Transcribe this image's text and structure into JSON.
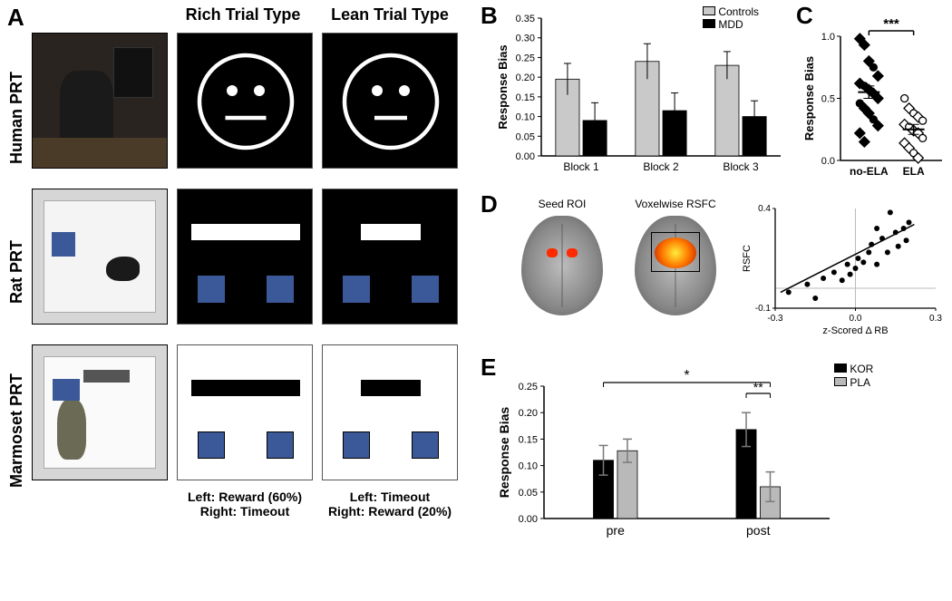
{
  "panelA": {
    "label": "A",
    "column_headers": {
      "rich": "Rich Trial Type",
      "lean": "Lean Trial Type"
    },
    "rows": [
      {
        "species_label": "Human PRT",
        "photo_bg": "#2a2420",
        "stim_bg": "black",
        "stim_type": "face",
        "rich_len": 1.0,
        "lean_len": 0.82
      },
      {
        "species_label": "Rat PRT",
        "photo_bg": "#d6d6d6",
        "stim_bg": "black",
        "stim_type": "bars",
        "bar_color": "#ffffff",
        "sq_color": "#3b5998",
        "rich_len": 1.0,
        "lean_len": 0.55
      },
      {
        "species_label": "Marmoset PRT",
        "photo_bg": "#d6d6d6",
        "stim_bg": "white",
        "stim_type": "bars",
        "bar_color": "#000000",
        "sq_color": "#3b5998",
        "rich_len": 1.0,
        "lean_len": 0.55
      }
    ],
    "captions": {
      "rich_line1": "Left: Reward (60%)",
      "rich_line2": "Right: Timeout",
      "lean_line1": "Left: Timeout",
      "lean_line2": "Right: Reward (20%)"
    }
  },
  "panelB": {
    "label": "B",
    "type": "bar",
    "y_label": "Response Bias",
    "ylim": [
      0,
      0.35
    ],
    "ytick_step": 0.05,
    "categories": [
      "Block 1",
      "Block 2",
      "Block 3"
    ],
    "series": [
      {
        "name": "Controls",
        "color": "#c9c9c9",
        "values": [
          0.195,
          0.24,
          0.23
        ],
        "errors": [
          0.04,
          0.045,
          0.035
        ]
      },
      {
        "name": "MDD",
        "color": "#000000",
        "values": [
          0.09,
          0.115,
          0.1
        ],
        "errors": [
          0.045,
          0.045,
          0.04
        ]
      }
    ],
    "bar_width": 0.32,
    "font_size_axis": 12
  },
  "panelC": {
    "label": "C",
    "type": "scatter-strip",
    "y_label": "Response Bias",
    "ylim": [
      0,
      1.0
    ],
    "ytick_step": 0.5,
    "groups": [
      {
        "name": "no-ELA",
        "x": 0,
        "mean": 0.55,
        "sem": 0.05,
        "points": [
          {
            "y": 0.98,
            "fill": true,
            "shape": "diamond"
          },
          {
            "y": 0.93,
            "fill": true,
            "shape": "diamond"
          },
          {
            "y": 0.8,
            "fill": true,
            "shape": "diamond"
          },
          {
            "y": 0.75,
            "fill": true,
            "shape": "circle"
          },
          {
            "y": 0.68,
            "fill": true,
            "shape": "diamond"
          },
          {
            "y": 0.62,
            "fill": true,
            "shape": "diamond"
          },
          {
            "y": 0.6,
            "fill": true,
            "shape": "circle"
          },
          {
            "y": 0.57,
            "fill": true,
            "shape": "diamond"
          },
          {
            "y": 0.54,
            "fill": true,
            "shape": "diamond"
          },
          {
            "y": 0.5,
            "fill": true,
            "shape": "diamond"
          },
          {
            "y": 0.46,
            "fill": true,
            "shape": "circle"
          },
          {
            "y": 0.42,
            "fill": true,
            "shape": "diamond"
          },
          {
            "y": 0.38,
            "fill": true,
            "shape": "diamond"
          },
          {
            "y": 0.33,
            "fill": true,
            "shape": "circle"
          },
          {
            "y": 0.28,
            "fill": true,
            "shape": "diamond"
          },
          {
            "y": 0.22,
            "fill": true,
            "shape": "diamond"
          },
          {
            "y": 0.15,
            "fill": true,
            "shape": "diamond"
          }
        ]
      },
      {
        "name": "ELA",
        "x": 1,
        "mean": 0.25,
        "sem": 0.04,
        "points": [
          {
            "y": 0.5,
            "fill": false,
            "shape": "circle"
          },
          {
            "y": 0.42,
            "fill": false,
            "shape": "diamond"
          },
          {
            "y": 0.38,
            "fill": false,
            "shape": "circle"
          },
          {
            "y": 0.35,
            "fill": false,
            "shape": "diamond"
          },
          {
            "y": 0.32,
            "fill": false,
            "shape": "circle"
          },
          {
            "y": 0.29,
            "fill": false,
            "shape": "diamond"
          },
          {
            "y": 0.27,
            "fill": false,
            "shape": "circle"
          },
          {
            "y": 0.24,
            "fill": false,
            "shape": "diamond"
          },
          {
            "y": 0.22,
            "fill": false,
            "shape": "diamond"
          },
          {
            "y": 0.18,
            "fill": false,
            "shape": "circle"
          },
          {
            "y": 0.14,
            "fill": false,
            "shape": "diamond"
          },
          {
            "y": 0.1,
            "fill": false,
            "shape": "diamond"
          },
          {
            "y": 0.06,
            "fill": false,
            "shape": "circle"
          },
          {
            "y": 0.02,
            "fill": false,
            "shape": "diamond"
          }
        ]
      }
    ],
    "significance": "***"
  },
  "panelD": {
    "label": "D",
    "brain_labels": {
      "seed": "Seed ROI",
      "voxel": "Voxelwise RSFC"
    },
    "scatter": {
      "x_label": "z-Scored Δ RB",
      "y_label": "RSFC",
      "xlim": [
        -0.3,
        0.3
      ],
      "ylim": [
        -0.1,
        0.4
      ],
      "xticks": [
        -0.3,
        0.0,
        0.3
      ],
      "yticks": [
        -0.1,
        0.4
      ],
      "points": [
        [
          -0.25,
          -0.02
        ],
        [
          -0.18,
          0.02
        ],
        [
          -0.15,
          -0.05
        ],
        [
          -0.12,
          0.05
        ],
        [
          -0.08,
          0.08
        ],
        [
          -0.05,
          0.04
        ],
        [
          -0.03,
          0.12
        ],
        [
          -0.02,
          0.07
        ],
        [
          0.0,
          0.1
        ],
        [
          0.01,
          0.15
        ],
        [
          0.03,
          0.13
        ],
        [
          0.05,
          0.18
        ],
        [
          0.06,
          0.22
        ],
        [
          0.08,
          0.12
        ],
        [
          0.1,
          0.25
        ],
        [
          0.12,
          0.18
        ],
        [
          0.13,
          0.38
        ],
        [
          0.15,
          0.28
        ],
        [
          0.16,
          0.21
        ],
        [
          0.18,
          0.3
        ],
        [
          0.19,
          0.24
        ],
        [
          0.2,
          0.33
        ],
        [
          0.08,
          0.3
        ]
      ],
      "trendline": {
        "x1": -0.28,
        "y1": -0.02,
        "x2": 0.22,
        "y2": 0.32
      }
    }
  },
  "panelE": {
    "label": "E",
    "type": "bar",
    "y_label": "Response Bias",
    "ylim": [
      0,
      0.25
    ],
    "ytick_step": 0.05,
    "categories": [
      "pre",
      "post"
    ],
    "series": [
      {
        "name": "KOR",
        "color": "#000000",
        "values": [
          0.11,
          0.168
        ],
        "errors": [
          0.028,
          0.032
        ]
      },
      {
        "name": "PLA",
        "color": "#b9b9b9",
        "values": [
          0.128,
          0.06
        ],
        "errors": [
          0.022,
          0.028
        ]
      }
    ],
    "bar_width": 0.14,
    "significance": [
      {
        "label": "*",
        "from": "pre-KOR",
        "to": "post-KOR"
      },
      {
        "label": "**",
        "from": "post-KOR",
        "to": "post-PLA"
      }
    ]
  },
  "colors": {
    "axis": "#000000",
    "grid": "#ffffff",
    "error_bar": "#7a7a7a"
  },
  "typography": {
    "panel_label_pt": 20,
    "header_pt": 14,
    "axis_label_pt": 12,
    "tick_pt": 10,
    "font_family": "Arial"
  }
}
